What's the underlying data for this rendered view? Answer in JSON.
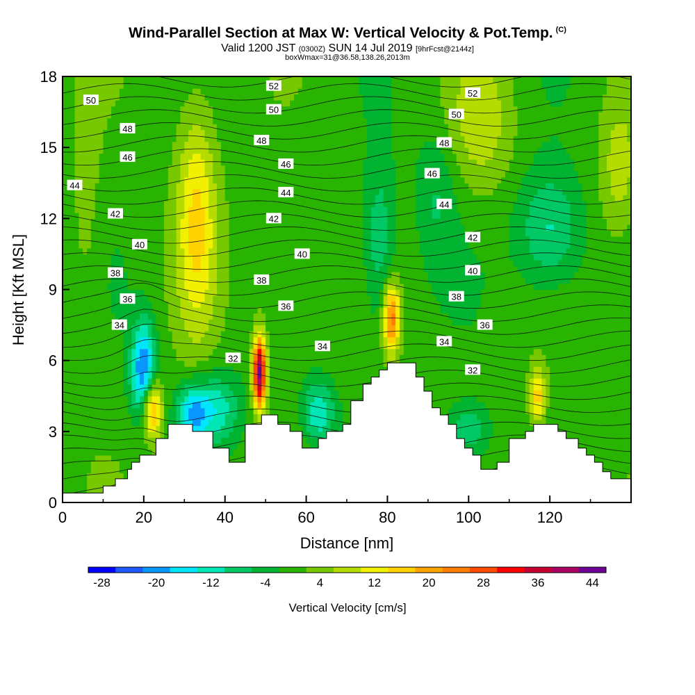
{
  "header": {
    "title": "Wind-Parallel Section at Max W: Vertical Velocity & Pot.Temp.",
    "title_tag": "(C)",
    "subtitle_valid": "Valid 1200 JST",
    "subtitle_utc": "(0300Z)",
    "subtitle_date": "SUN 14 Jul 2019",
    "subtitle_fcst": "[9hrFcst@2144z]",
    "subline": "boxWmax=31@36.58,138.26,2013m"
  },
  "chart_data": {
    "type": "heatmap",
    "title": "Wind-Parallel Section at Max W: Vertical Velocity & Pot.Temp.",
    "xlabel": "Distance [nm]",
    "ylabel": "Height [Kft MSL]",
    "xlim": [
      0,
      140
    ],
    "ylim": [
      0,
      18
    ],
    "x_ticks": [
      "0",
      "20",
      "40",
      "60",
      "80",
      "100",
      "120"
    ],
    "y_ticks": [
      "0",
      "3",
      "6",
      "9",
      "12",
      "15",
      "18"
    ],
    "colorbar": {
      "title": "Vertical Velocity [cm/s]",
      "tick_labels": [
        "-28",
        "-20",
        "-12",
        "-4",
        "4",
        "12",
        "20",
        "28",
        "36",
        "44"
      ],
      "colors": [
        "#0000ff",
        "#1e5aff",
        "#0a96ff",
        "#00e6ff",
        "#00e6b4",
        "#00c864",
        "#00b432",
        "#28b400",
        "#78c800",
        "#b4dc00",
        "#f0f000",
        "#ffd200",
        "#ffa500",
        "#ff7d00",
        "#ff4b00",
        "#ff0000",
        "#c80032",
        "#aa0064",
        "#6e0096"
      ]
    },
    "terrain": [
      [
        0,
        0.4
      ],
      [
        10,
        0.4
      ],
      [
        10,
        0.7
      ],
      [
        13,
        0.7
      ],
      [
        13,
        1.0
      ],
      [
        16,
        1.0
      ],
      [
        16,
        1.4
      ],
      [
        17,
        1.4
      ],
      [
        17,
        1.7
      ],
      [
        19,
        1.7
      ],
      [
        19,
        2.0
      ],
      [
        23,
        2.0
      ],
      [
        23,
        2.7
      ],
      [
        26,
        2.7
      ],
      [
        26,
        3.3
      ],
      [
        32,
        3.3
      ],
      [
        32,
        3.0
      ],
      [
        37,
        3.0
      ],
      [
        37,
        2.3
      ],
      [
        41,
        2.3
      ],
      [
        41,
        1.7
      ],
      [
        45,
        1.7
      ],
      [
        45,
        3.3
      ],
      [
        49,
        3.3
      ],
      [
        49,
        3.7
      ],
      [
        53,
        3.7
      ],
      [
        53,
        3.3
      ],
      [
        56,
        3.3
      ],
      [
        56,
        3.0
      ],
      [
        59,
        3.0
      ],
      [
        59,
        2.3
      ],
      [
        63,
        2.3
      ],
      [
        63,
        2.7
      ],
      [
        65,
        2.7
      ],
      [
        65,
        3.0
      ],
      [
        69,
        3.0
      ],
      [
        69,
        3.3
      ],
      [
        71,
        3.3
      ],
      [
        71,
        4.3
      ],
      [
        74,
        4.3
      ],
      [
        74,
        5.0
      ],
      [
        76,
        5.0
      ],
      [
        76,
        5.3
      ],
      [
        78,
        5.3
      ],
      [
        78,
        5.6
      ],
      [
        80,
        5.6
      ],
      [
        80,
        5.9
      ],
      [
        87,
        5.9
      ],
      [
        87,
        5.3
      ],
      [
        89,
        5.3
      ],
      [
        89,
        4.7
      ],
      [
        91,
        4.7
      ],
      [
        91,
        4.0
      ],
      [
        93,
        4.0
      ],
      [
        93,
        3.7
      ],
      [
        95,
        3.7
      ],
      [
        95,
        3.3
      ],
      [
        97,
        3.3
      ],
      [
        97,
        2.7
      ],
      [
        99,
        2.7
      ],
      [
        99,
        2.3
      ],
      [
        101,
        2.3
      ],
      [
        101,
        2.0
      ],
      [
        103,
        2.0
      ],
      [
        103,
        1.4
      ],
      [
        107,
        1.4
      ],
      [
        107,
        1.7
      ],
      [
        110,
        1.7
      ],
      [
        110,
        2.7
      ],
      [
        114,
        2.7
      ],
      [
        114,
        3.0
      ],
      [
        116,
        3.0
      ],
      [
        116,
        3.3
      ],
      [
        122,
        3.3
      ],
      [
        122,
        3.0
      ],
      [
        124,
        3.0
      ],
      [
        124,
        2.7
      ],
      [
        127,
        2.7
      ],
      [
        127,
        2.3
      ],
      [
        129,
        2.3
      ],
      [
        129,
        2.0
      ],
      [
        131,
        2.0
      ],
      [
        131,
        1.7
      ],
      [
        133,
        1.7
      ],
      [
        133,
        1.3
      ],
      [
        135,
        1.3
      ],
      [
        135,
        1.0
      ],
      [
        140,
        1.0
      ]
    ],
    "theta_labels": [
      {
        "x": 7,
        "y": 17.0,
        "text": "50"
      },
      {
        "x": 16,
        "y": 15.8,
        "text": "48"
      },
      {
        "x": 16,
        "y": 14.6,
        "text": "46"
      },
      {
        "x": 3,
        "y": 13.4,
        "text": "44"
      },
      {
        "x": 13,
        "y": 12.2,
        "text": "42"
      },
      {
        "x": 19,
        "y": 10.9,
        "text": "40"
      },
      {
        "x": 13,
        "y": 9.7,
        "text": "38"
      },
      {
        "x": 16,
        "y": 8.6,
        "text": "36"
      },
      {
        "x": 14,
        "y": 7.5,
        "text": "34"
      },
      {
        "x": 52,
        "y": 17.6,
        "text": "52"
      },
      {
        "x": 52,
        "y": 16.6,
        "text": "50"
      },
      {
        "x": 49,
        "y": 15.3,
        "text": "48"
      },
      {
        "x": 55,
        "y": 14.3,
        "text": "46"
      },
      {
        "x": 55,
        "y": 13.1,
        "text": "44"
      },
      {
        "x": 52,
        "y": 12.0,
        "text": "42"
      },
      {
        "x": 59,
        "y": 10.5,
        "text": "40"
      },
      {
        "x": 49,
        "y": 9.4,
        "text": "38"
      },
      {
        "x": 55,
        "y": 8.3,
        "text": "36"
      },
      {
        "x": 64,
        "y": 6.6,
        "text": "34"
      },
      {
        "x": 42,
        "y": 6.1,
        "text": "32"
      },
      {
        "x": 101,
        "y": 17.3,
        "text": "52"
      },
      {
        "x": 97,
        "y": 16.4,
        "text": "50"
      },
      {
        "x": 94,
        "y": 15.2,
        "text": "48"
      },
      {
        "x": 91,
        "y": 13.9,
        "text": "46"
      },
      {
        "x": 94,
        "y": 12.6,
        "text": "44"
      },
      {
        "x": 101,
        "y": 11.2,
        "text": "42"
      },
      {
        "x": 101,
        "y": 9.8,
        "text": "40"
      },
      {
        "x": 97,
        "y": 8.7,
        "text": "38"
      },
      {
        "x": 104,
        "y": 7.5,
        "text": "36"
      },
      {
        "x": 94,
        "y": 6.8,
        "text": "34"
      },
      {
        "x": 101,
        "y": 5.6,
        "text": "32"
      }
    ]
  }
}
